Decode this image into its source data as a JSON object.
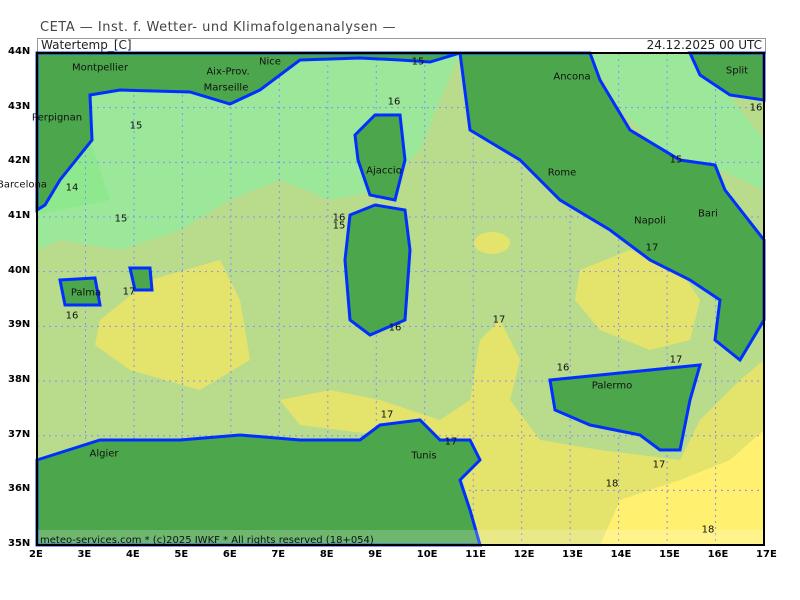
{
  "header": {
    "title": "CETA — Inst. f. Wetter- und Klimafolgenanalysen —",
    "variable": "Watertemp_[C]",
    "valid_time": "24.12.2025 00 UTC"
  },
  "footer": "meteo-services.com * (c)2025 IWKF * All rights reserved (18+054)",
  "axes": {
    "lon_ticks": [
      "2E",
      "3E",
      "4E",
      "5E",
      "6E",
      "7E",
      "8E",
      "9E",
      "10E",
      "11E",
      "12E",
      "13E",
      "14E",
      "15E",
      "16E",
      "17E"
    ],
    "lat_ticks": [
      "44N",
      "43N",
      "42N",
      "41N",
      "40N",
      "39N",
      "38N",
      "37N",
      "36N",
      "35N"
    ]
  },
  "cities": [
    "Montpellier",
    "Aix-Prov.",
    "Nice",
    "Marseille",
    "Perpignan",
    "Barcelona",
    "Ajaccio",
    "Ancona",
    "Split",
    "Rome",
    "Napoli",
    "Bari",
    "Palma",
    "Palermo",
    "Algier",
    "Tunis"
  ],
  "contour_labels": [
    "15",
    "15",
    "16",
    "14",
    "15",
    "16",
    "15",
    "16",
    "15",
    "17",
    "16",
    "17",
    "17",
    "17",
    "16",
    "16",
    "17",
    "17",
    "18",
    "18",
    "17"
  ],
  "colors": {
    "land": "#4ca64c",
    "coast": "#0030ff",
    "sea_14": "#8ee88e",
    "sea_15": "#9be89b",
    "sea_16": "#b8dc8c",
    "sea_17": "#e4e46c",
    "sea_18": "#fff070"
  }
}
